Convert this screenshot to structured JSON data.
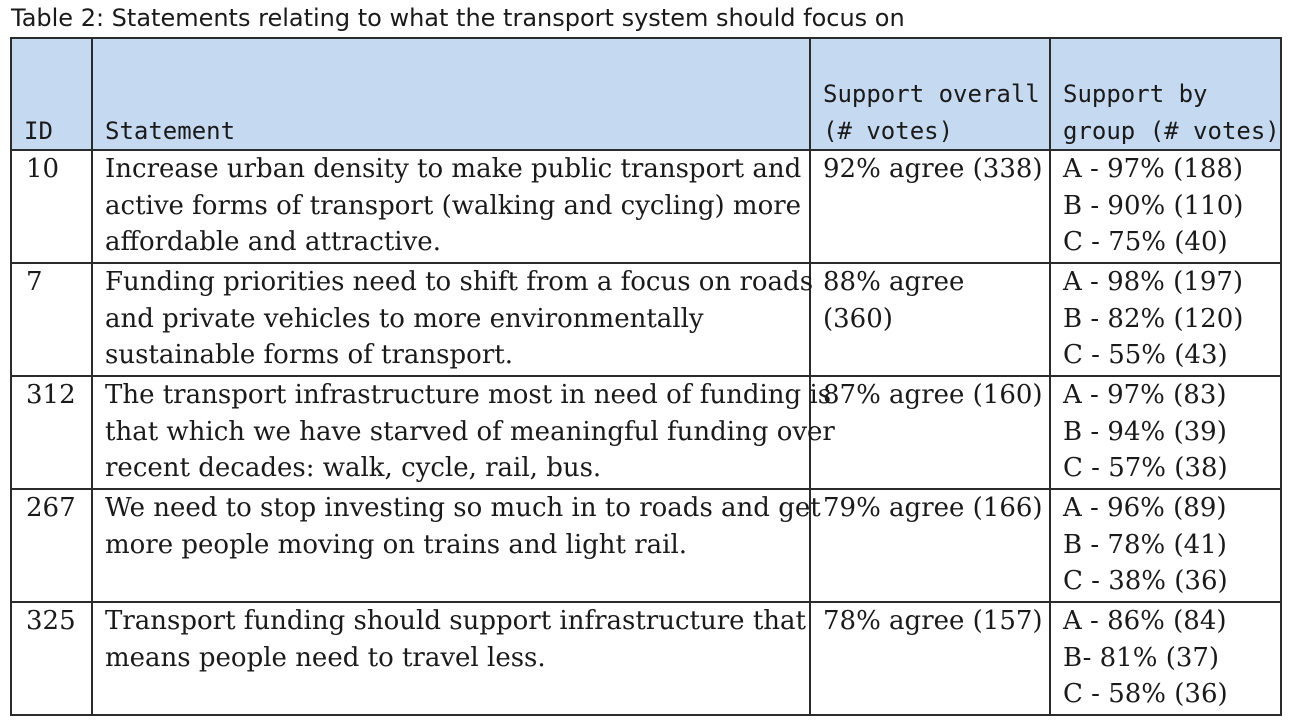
{
  "caption": "Table 2: Statements relating to what the transport system should focus on",
  "table": {
    "headers": {
      "id": "ID",
      "statement": "Statement",
      "overall": [
        "Support overall",
        "(# votes)"
      ],
      "group": [
        "Support by",
        "group (#",
        "votes)"
      ]
    },
    "rows": [
      {
        "id": "10",
        "statement": [
          "Increase urban density to make public transport and",
          "active forms of transport (walking and cycling) more",
          "affordable and attractive."
        ],
        "overall": [
          "92% agree (338)"
        ],
        "groups": [
          "A - 97% (188)",
          "B - 90% (110)",
          "C - 75% (40)"
        ]
      },
      {
        "id": "7",
        "statement": [
          "Funding priorities need to shift from a focus on roads",
          "and private vehicles to more environmentally",
          "sustainable forms of transport."
        ],
        "overall": [
          "88% agree",
          "(360)"
        ],
        "groups": [
          "A - 98% (197)",
          "B - 82% (120)",
          "C - 55% (43)"
        ]
      },
      {
        "id": "312",
        "statement": [
          "The transport infrastructure most in need of funding is",
          "that which we have starved of meaningful funding over",
          "recent decades: walk, cycle, rail, bus."
        ],
        "overall": [
          "87% agree (160)"
        ],
        "groups": [
          "A - 97% (83)",
          "B - 94% (39)",
          "C - 57% (38)"
        ]
      },
      {
        "id": "267",
        "statement": [
          "We need to stop investing so much in to roads and get",
          "more people moving on trains and light rail."
        ],
        "overall": [
          "79% agree (166)"
        ],
        "groups": [
          "A - 96% (89)",
          "B - 78% (41)",
          "C - 38% (36)"
        ]
      },
      {
        "id": "325",
        "statement": [
          "Transport funding should support infrastructure that",
          "means people need to travel less."
        ],
        "overall": [
          "78% agree (157)"
        ],
        "groups": [
          "A - 86% (84)",
          "B- 81% (37)",
          "C - 58% (36)"
        ]
      }
    ]
  }
}
